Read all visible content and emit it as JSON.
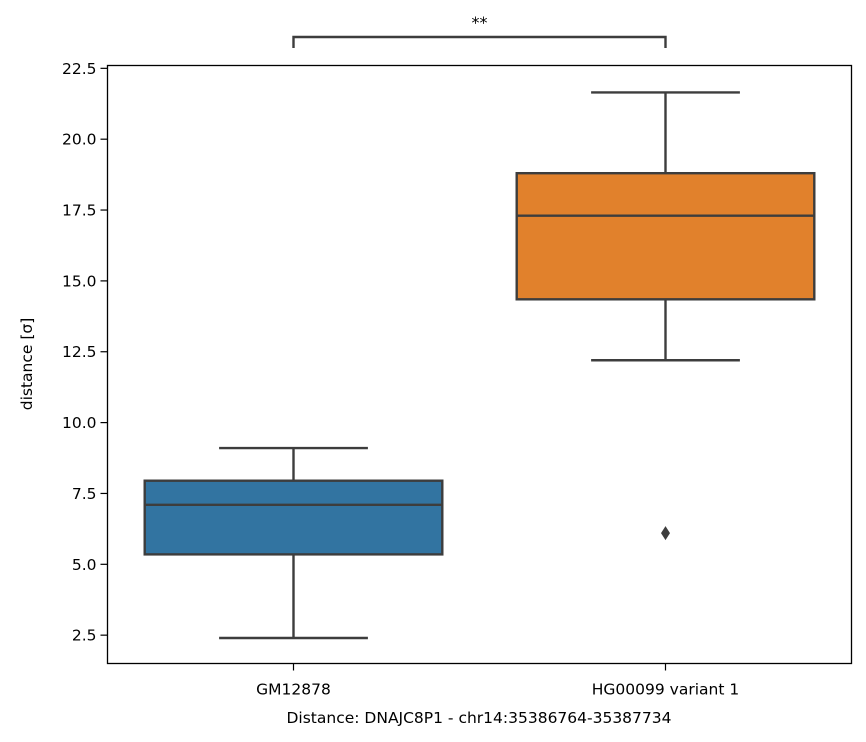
{
  "chart_data": {
    "type": "box",
    "xlabel": "Distance:  DNAJC8P1 - chr14:35386764-35387734",
    "ylabel": "distance [σ]",
    "ylim": [
      1.5,
      22.6
    ],
    "yticks": [
      2.5,
      5.0,
      7.5,
      10.0,
      12.5,
      15.0,
      17.5,
      20.0,
      22.5
    ],
    "ytick_labels": [
      "2.5",
      "5.0",
      "7.5",
      "10.0",
      "12.5",
      "15.0",
      "17.5",
      "20.0",
      "22.5"
    ],
    "grid": false,
    "legend": "none",
    "categories": [
      "GM12878",
      "HG00099 variant 1"
    ],
    "boxes": [
      {
        "category": "GM12878",
        "whisker_low": 2.4,
        "q1": 5.35,
        "median": 7.1,
        "q3": 7.95,
        "whisker_high": 9.1,
        "outliers": [],
        "color": "#3274a1"
      },
      {
        "category": "HG00099 variant 1",
        "whisker_low": 12.2,
        "q1": 14.35,
        "median": 17.3,
        "q3": 18.8,
        "whisker_high": 21.65,
        "outliers": [
          6.1
        ],
        "color": "#e1812c"
      }
    ],
    "annotations": [
      {
        "text": "**",
        "between": [
          "GM12878",
          "HG00099 variant 1"
        ]
      }
    ],
    "line_color": "#3d3d3d"
  }
}
